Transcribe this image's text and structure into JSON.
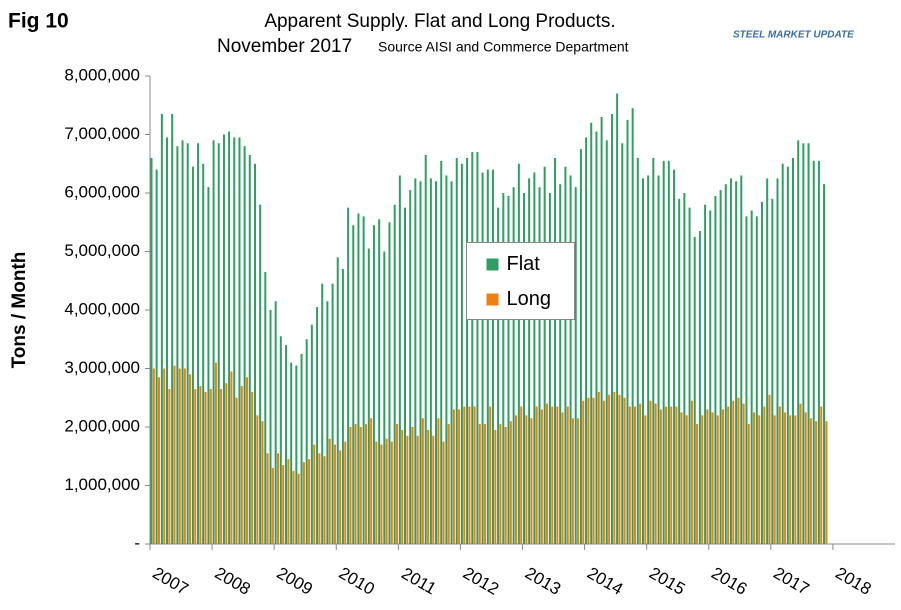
{
  "chart_data": {
    "type": "bar",
    "figure_label": "Fig 10",
    "title": "Apparent Supply. Flat and Long Products.",
    "subtitle": "November 2017",
    "source": "Source AISI and Commerce Department",
    "logo": "STEEL MARKET UPDATE",
    "y_label": "Tons / Month",
    "legend": "center",
    "xlim": [
      2007,
      2019
    ],
    "xticks": [
      2007,
      2008,
      2009,
      2010,
      2011,
      2012,
      2013,
      2014,
      2015,
      2016,
      2017,
      2018
    ],
    "ylim": [
      0,
      8000000
    ],
    "yticks": [
      {
        "value": 0,
        "label": "-"
      },
      {
        "value": 1000000,
        "label": "1,000,000"
      },
      {
        "value": 2000000,
        "label": "2,000,000"
      },
      {
        "value": 3000000,
        "label": "3,000,000"
      },
      {
        "value": 4000000,
        "label": "4,000,000"
      },
      {
        "value": 5000000,
        "label": "5,000,000"
      },
      {
        "value": 6000000,
        "label": "6,000,000"
      },
      {
        "value": 7000000,
        "label": "7,000,000"
      },
      {
        "value": 8000000,
        "label": "8,000,000"
      }
    ],
    "x": [
      2007,
      2007.083,
      2007.167,
      2007.25,
      2007.333,
      2007.417,
      2007.5,
      2007.583,
      2007.667,
      2007.75,
      2007.833,
      2007.917,
      2008,
      2008.083,
      2008.167,
      2008.25,
      2008.333,
      2008.417,
      2008.5,
      2008.583,
      2008.667,
      2008.75,
      2008.833,
      2008.917,
      2009,
      2009.083,
      2009.167,
      2009.25,
      2009.333,
      2009.417,
      2009.5,
      2009.583,
      2009.667,
      2009.75,
      2009.833,
      2009.917,
      2010,
      2010.083,
      2010.167,
      2010.25,
      2010.333,
      2010.417,
      2010.5,
      2010.583,
      2010.667,
      2010.75,
      2010.833,
      2010.917,
      2011,
      2011.083,
      2011.167,
      2011.25,
      2011.333,
      2011.417,
      2011.5,
      2011.583,
      2011.667,
      2011.75,
      2011.833,
      2011.917,
      2012,
      2012.083,
      2012.167,
      2012.25,
      2012.333,
      2012.417,
      2012.5,
      2012.583,
      2012.667,
      2012.75,
      2012.833,
      2012.917,
      2013,
      2013.083,
      2013.167,
      2013.25,
      2013.333,
      2013.417,
      2013.5,
      2013.583,
      2013.667,
      2013.75,
      2013.833,
      2013.917,
      2014,
      2014.083,
      2014.167,
      2014.25,
      2014.333,
      2014.417,
      2014.5,
      2014.583,
      2014.667,
      2014.75,
      2014.833,
      2014.917,
      2015,
      2015.083,
      2015.167,
      2015.25,
      2015.333,
      2015.417,
      2015.5,
      2015.583,
      2015.667,
      2015.75,
      2015.833,
      2015.917,
      2016,
      2016.083,
      2016.167,
      2016.25,
      2016.333,
      2016.417,
      2016.5,
      2016.583,
      2016.667,
      2016.75,
      2016.833,
      2016.917,
      2017,
      2017.083,
      2017.167,
      2017.25,
      2017.333,
      2017.417,
      2017.5,
      2017.583,
      2017.667,
      2017.75,
      2017.833
    ],
    "series": [
      {
        "name": "Flat",
        "color": "#2e9e63",
        "values": [
          6600000,
          6400000,
          7350000,
          6950000,
          7350000,
          6800000,
          6900000,
          6850000,
          6450000,
          6850000,
          6500000,
          6100000,
          6900000,
          6850000,
          7000000,
          7050000,
          6950000,
          6950000,
          6800000,
          6650000,
          6500000,
          5800000,
          4650000,
          4000000,
          4150000,
          3550000,
          3400000,
          3100000,
          3050000,
          3250000,
          3500000,
          3750000,
          4050000,
          4450000,
          4150000,
          4450000,
          4900000,
          4700000,
          5750000,
          5450000,
          5650000,
          5600000,
          5050000,
          5450000,
          5550000,
          5000000,
          5500000,
          5800000,
          6300000,
          5750000,
          6050000,
          6250000,
          6200000,
          6650000,
          6250000,
          6200000,
          6550000,
          6300000,
          6200000,
          6600000,
          6500000,
          6600000,
          6700000,
          6700000,
          6350000,
          6400000,
          6400000,
          5750000,
          6000000,
          5950000,
          6100000,
          6500000,
          6000000,
          6250000,
          6350000,
          6100000,
          6450000,
          6000000,
          6600000,
          6150000,
          6450000,
          6300000,
          6100000,
          6750000,
          6950000,
          7200000,
          7050000,
          7300000,
          6900000,
          7350000,
          7700000,
          6850000,
          7250000,
          7450000,
          6600000,
          6250000,
          6300000,
          6600000,
          6300000,
          6550000,
          6550000,
          6400000,
          5900000,
          6000000,
          5750000,
          5250000,
          5350000,
          5800000,
          5700000,
          5950000,
          6050000,
          6150000,
          6250000,
          6200000,
          6300000,
          5600000,
          5700000,
          5600000,
          5850000,
          6250000,
          5900000,
          6250000,
          6500000,
          6450000,
          6600000,
          6900000,
          6850000,
          6850000,
          6550000,
          6550000,
          6150000
        ]
      },
      {
        "name": "Long",
        "color": "#f07f0f",
        "values": [
          3000000,
          2850000,
          3000000,
          2650000,
          3050000,
          3000000,
          3000000,
          2900000,
          2650000,
          2700000,
          2600000,
          2650000,
          3100000,
          2650000,
          2750000,
          2950000,
          2500000,
          2700000,
          2850000,
          2600000,
          2200000,
          2100000,
          1550000,
          1300000,
          1550000,
          1350000,
          1450000,
          1250000,
          1200000,
          1400000,
          1450000,
          1700000,
          1550000,
          1500000,
          1800000,
          1700000,
          1600000,
          1750000,
          2000000,
          2050000,
          2000000,
          2050000,
          2150000,
          1750000,
          1700000,
          1800000,
          1750000,
          2050000,
          1950000,
          1850000,
          2000000,
          1850000,
          2150000,
          1950000,
          1850000,
          2150000,
          1750000,
          2050000,
          2300000,
          2300000,
          2350000,
          2350000,
          2350000,
          2050000,
          2050000,
          2350000,
          1950000,
          2050000,
          2000000,
          2100000,
          2200000,
          2350000,
          2200000,
          2150000,
          2350000,
          2300000,
          2400000,
          2350000,
          2350000,
          2250000,
          2350000,
          2150000,
          2150000,
          2450000,
          2500000,
          2500000,
          2600000,
          2450000,
          2550000,
          2600000,
          2550000,
          2500000,
          2350000,
          2350000,
          2400000,
          2200000,
          2450000,
          2400000,
          2300000,
          2350000,
          2350000,
          2350000,
          2250000,
          2200000,
          2450000,
          2050000,
          2200000,
          2300000,
          2250000,
          2200000,
          2300000,
          2350000,
          2450000,
          2500000,
          2400000,
          2050000,
          2250000,
          2200000,
          2350000,
          2550000,
          2200000,
          2350000,
          2250000,
          2200000,
          2200000,
          2400000,
          2250000,
          2150000,
          2100000,
          2350000,
          2100000
        ]
      }
    ]
  }
}
